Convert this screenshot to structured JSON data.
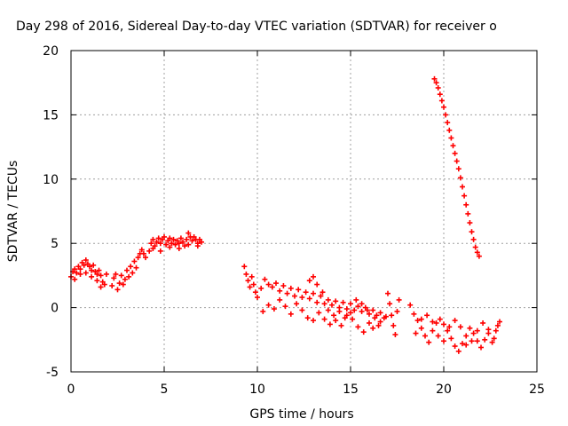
{
  "chart_data": {
    "type": "scatter",
    "title": "Day 298 of 2016, Sidereal Day-to-day VTEC variation (SDTVAR) for receiver o",
    "xlabel": "GPS time / hours",
    "ylabel": "SDTVAR / TECUs",
    "xlim": [
      0,
      25
    ],
    "ylim": [
      -5,
      20
    ],
    "xticks": [
      "0",
      "5",
      "10",
      "15",
      "20",
      "25"
    ],
    "yticks": [
      "-5",
      "0",
      "5",
      "10",
      "15",
      "20"
    ],
    "grid": true,
    "marker": "+",
    "color": "#ff0000",
    "series": [
      {
        "points": [
          [
            0.0,
            2.4
          ],
          [
            0.1,
            2.8
          ],
          [
            0.2,
            3.0
          ],
          [
            0.3,
            2.7
          ],
          [
            0.4,
            3.2
          ],
          [
            0.5,
            3.0
          ],
          [
            0.6,
            3.5
          ],
          [
            0.7,
            3.3
          ],
          [
            0.8,
            3.7
          ],
          [
            0.9,
            3.4
          ],
          [
            1.0,
            3.2
          ],
          [
            1.1,
            2.9
          ],
          [
            1.2,
            3.3
          ],
          [
            1.3,
            2.8
          ],
          [
            1.4,
            2.6
          ],
          [
            1.5,
            2.9
          ],
          [
            1.6,
            2.5
          ],
          [
            1.7,
            2.0
          ],
          [
            1.8,
            1.8
          ],
          [
            1.9,
            2.6
          ],
          [
            0.2,
            2.2
          ],
          [
            0.5,
            2.6
          ],
          [
            0.8,
            2.7
          ],
          [
            1.1,
            2.4
          ],
          [
            1.4,
            2.1
          ],
          [
            1.6,
            1.6
          ],
          [
            2.2,
            1.7
          ],
          [
            2.3,
            2.3
          ],
          [
            2.4,
            2.6
          ],
          [
            2.5,
            1.4
          ],
          [
            2.6,
            1.9
          ],
          [
            2.7,
            2.5
          ],
          [
            2.8,
            1.8
          ],
          [
            2.9,
            2.2
          ],
          [
            3.0,
            2.9
          ],
          [
            3.1,
            2.4
          ],
          [
            3.2,
            3.2
          ],
          [
            3.3,
            2.7
          ],
          [
            3.4,
            3.6
          ],
          [
            3.5,
            3.1
          ],
          [
            3.6,
            3.9
          ],
          [
            3.7,
            4.2
          ],
          [
            3.8,
            4.5
          ],
          [
            3.9,
            4.2
          ],
          [
            4.0,
            3.9
          ],
          [
            4.2,
            4.4
          ],
          [
            4.3,
            5.0
          ],
          [
            4.4,
            5.3
          ],
          [
            4.5,
            4.8
          ],
          [
            4.6,
            5.1
          ],
          [
            4.7,
            5.4
          ],
          [
            4.8,
            5.0
          ],
          [
            4.9,
            5.3
          ],
          [
            5.0,
            5.5
          ],
          [
            5.1,
            4.9
          ],
          [
            5.2,
            5.2
          ],
          [
            5.3,
            5.4
          ],
          [
            5.4,
            5.0
          ],
          [
            5.5,
            5.3
          ],
          [
            5.6,
            4.9
          ],
          [
            5.7,
            5.2
          ],
          [
            5.8,
            5.0
          ],
          [
            5.9,
            5.4
          ],
          [
            6.0,
            5.1
          ],
          [
            6.1,
            4.8
          ],
          [
            6.2,
            5.3
          ],
          [
            6.3,
            5.8
          ],
          [
            6.4,
            5.5
          ],
          [
            6.5,
            5.2
          ],
          [
            6.6,
            5.5
          ],
          [
            6.7,
            5.3
          ],
          [
            6.8,
            5.0
          ],
          [
            6.9,
            5.3
          ],
          [
            7.0,
            5.1
          ],
          [
            4.4,
            4.6
          ],
          [
            4.8,
            4.4
          ],
          [
            5.3,
            4.7
          ],
          [
            5.8,
            4.6
          ],
          [
            6.3,
            4.9
          ],
          [
            6.8,
            4.8
          ],
          [
            9.3,
            3.2
          ],
          [
            9.4,
            2.6
          ],
          [
            9.5,
            2.1
          ],
          [
            9.6,
            1.6
          ],
          [
            9.7,
            2.4
          ],
          [
            9.8,
            1.8
          ],
          [
            9.9,
            1.2
          ],
          [
            10.0,
            0.8
          ],
          [
            10.2,
            1.5
          ],
          [
            10.4,
            2.2
          ],
          [
            10.6,
            1.8
          ],
          [
            10.8,
            1.6
          ],
          [
            11.0,
            1.9
          ],
          [
            11.2,
            1.3
          ],
          [
            11.4,
            1.7
          ],
          [
            11.6,
            1.1
          ],
          [
            11.8,
            1.5
          ],
          [
            12.0,
            0.9
          ],
          [
            12.2,
            1.4
          ],
          [
            12.4,
            0.8
          ],
          [
            12.6,
            1.2
          ],
          [
            12.8,
            0.7
          ],
          [
            13.0,
            1.1
          ],
          [
            13.2,
            0.4
          ],
          [
            13.4,
            0.9
          ],
          [
            13.6,
            0.3
          ],
          [
            13.8,
            0.6
          ],
          [
            14.0,
            0.2
          ],
          [
            14.2,
            0.5
          ],
          [
            14.4,
            0.0
          ],
          [
            14.6,
            0.4
          ],
          [
            14.8,
            -0.1
          ],
          [
            15.0,
            0.3
          ],
          [
            15.2,
            -0.2
          ],
          [
            15.4,
            0.1
          ],
          [
            15.6,
            -0.3
          ],
          [
            15.8,
            0.0
          ],
          [
            16.0,
            -0.5
          ],
          [
            16.2,
            -0.2
          ],
          [
            16.4,
            -0.6
          ],
          [
            16.6,
            -0.4
          ],
          [
            16.8,
            -0.8
          ],
          [
            10.3,
            -0.3
          ],
          [
            10.6,
            0.2
          ],
          [
            10.9,
            -0.1
          ],
          [
            11.2,
            0.6
          ],
          [
            11.5,
            0.1
          ],
          [
            11.8,
            -0.5
          ],
          [
            12.1,
            0.3
          ],
          [
            12.4,
            -0.2
          ],
          [
            12.7,
            -0.8
          ],
          [
            13.0,
            -1.0
          ],
          [
            13.3,
            -0.4
          ],
          [
            13.6,
            -0.9
          ],
          [
            13.9,
            -1.3
          ],
          [
            14.2,
            -1.0
          ],
          [
            14.5,
            -1.4
          ],
          [
            14.8,
            -0.6
          ],
          [
            15.1,
            -0.9
          ],
          [
            15.4,
            -1.5
          ],
          [
            15.7,
            -1.9
          ],
          [
            16.0,
            -1.2
          ],
          [
            16.3,
            -0.8
          ],
          [
            16.6,
            -1.1
          ],
          [
            16.9,
            -0.7
          ],
          [
            12.8,
            2.1
          ],
          [
            13.0,
            2.4
          ],
          [
            13.2,
            1.8
          ],
          [
            13.5,
            1.2
          ],
          [
            13.8,
            -0.2
          ],
          [
            14.1,
            -0.6
          ],
          [
            14.4,
            -0.3
          ],
          [
            14.7,
            -0.8
          ],
          [
            15.0,
            -0.4
          ],
          [
            15.3,
            0.6
          ],
          [
            15.6,
            0.3
          ],
          [
            15.9,
            -0.2
          ],
          [
            16.2,
            -1.6
          ],
          [
            16.5,
            -1.4
          ],
          [
            17.0,
            1.1
          ],
          [
            17.1,
            0.3
          ],
          [
            17.2,
            -0.6
          ],
          [
            17.3,
            -1.4
          ],
          [
            17.4,
            -2.1
          ],
          [
            17.5,
            -0.3
          ],
          [
            17.6,
            0.6
          ],
          [
            18.2,
            0.2
          ],
          [
            18.4,
            -0.5
          ],
          [
            18.6,
            -1.0
          ],
          [
            18.8,
            -1.6
          ],
          [
            19.0,
            -2.2
          ],
          [
            19.2,
            -2.7
          ],
          [
            19.4,
            -1.8
          ],
          [
            19.6,
            -1.2
          ],
          [
            19.8,
            -0.9
          ],
          [
            20.0,
            -1.3
          ],
          [
            20.2,
            -1.8
          ],
          [
            20.4,
            -2.4
          ],
          [
            20.6,
            -3.0
          ],
          [
            20.8,
            -3.4
          ],
          [
            21.0,
            -2.8
          ],
          [
            21.2,
            -2.2
          ],
          [
            21.4,
            -1.6
          ],
          [
            21.6,
            -2.0
          ],
          [
            21.8,
            -2.6
          ],
          [
            22.0,
            -3.1
          ],
          [
            22.2,
            -2.5
          ],
          [
            22.4,
            -2.0
          ],
          [
            22.6,
            -2.7
          ],
          [
            22.8,
            -1.8
          ],
          [
            23.0,
            -1.1
          ],
          [
            18.5,
            -2.0
          ],
          [
            18.8,
            -0.9
          ],
          [
            19.1,
            -0.6
          ],
          [
            19.4,
            -1.1
          ],
          [
            19.7,
            -2.2
          ],
          [
            20.0,
            -2.6
          ],
          [
            20.3,
            -1.5
          ],
          [
            20.6,
            -1.0
          ],
          [
            20.9,
            -1.5
          ],
          [
            21.2,
            -2.9
          ],
          [
            21.5,
            -2.6
          ],
          [
            21.8,
            -1.8
          ],
          [
            22.1,
            -1.2
          ],
          [
            22.4,
            -1.7
          ],
          [
            22.7,
            -2.4
          ],
          [
            22.9,
            -1.4
          ],
          [
            19.5,
            17.8
          ],
          [
            19.6,
            17.5
          ],
          [
            19.7,
            17.1
          ],
          [
            19.8,
            16.6
          ],
          [
            19.9,
            16.1
          ],
          [
            20.0,
            15.6
          ],
          [
            20.1,
            15.0
          ],
          [
            20.2,
            14.4
          ],
          [
            20.3,
            13.8
          ],
          [
            20.4,
            13.2
          ],
          [
            20.5,
            12.6
          ],
          [
            20.6,
            12.0
          ],
          [
            20.7,
            11.4
          ],
          [
            20.8,
            10.8
          ],
          [
            20.9,
            10.1
          ],
          [
            21.0,
            9.4
          ],
          [
            21.1,
            8.7
          ],
          [
            21.2,
            8.0
          ],
          [
            21.3,
            7.3
          ],
          [
            21.4,
            6.6
          ],
          [
            21.5,
            5.9
          ],
          [
            21.6,
            5.3
          ],
          [
            21.7,
            4.7
          ],
          [
            21.8,
            4.3
          ],
          [
            21.9,
            4.0
          ]
        ]
      }
    ]
  }
}
